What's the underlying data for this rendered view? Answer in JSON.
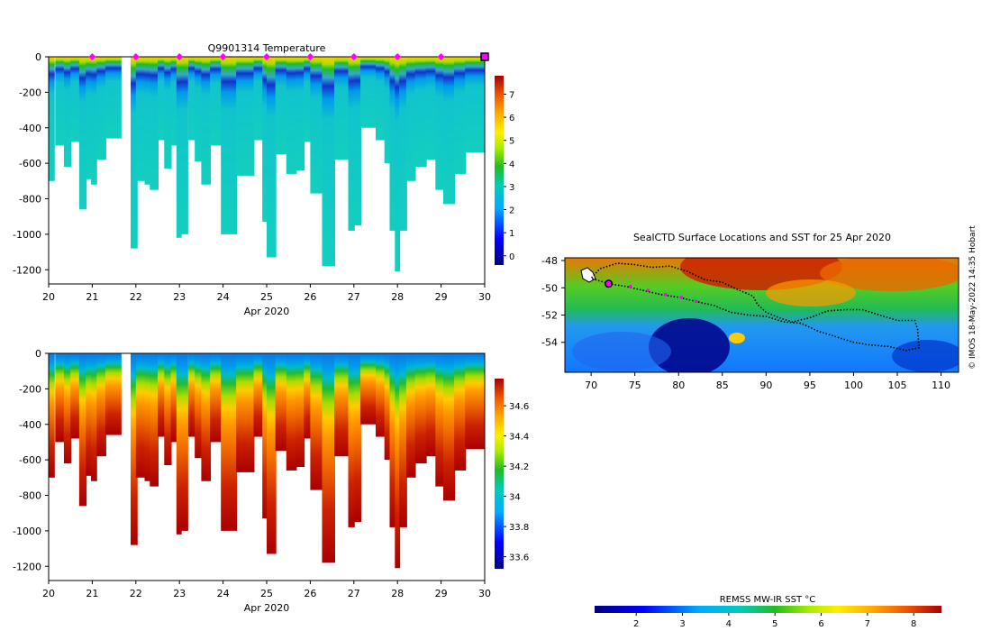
{
  "chart_data": [
    {
      "type": "heatmap",
      "title": "Q9901314  Temperature",
      "xlabel": "Apr 2020",
      "ylabel": "",
      "xlim": [
        20,
        30
      ],
      "ylim": [
        -1280,
        0
      ],
      "x_ticks": [
        "20",
        "21",
        "22",
        "23",
        "24",
        "25",
        "26",
        "27",
        "28",
        "29",
        "30"
      ],
      "y_ticks": [
        "0",
        "-200",
        "-400",
        "-600",
        "-800",
        "-1000",
        "-1200"
      ],
      "colorbar": {
        "ticks": [
          "0",
          "1",
          "2",
          "3",
          "4",
          "5",
          "6",
          "7"
        ],
        "range": [
          -0.4,
          7.8
        ]
      },
      "surface_markers": [
        21,
        22,
        23,
        24,
        25,
        26,
        27,
        28,
        29
      ],
      "current_marker": 30,
      "profiles": [
        {
          "day": 20.0,
          "width": 0.12,
          "depth": 700
        },
        {
          "day": 20.15,
          "width": 0.18,
          "depth": 500
        },
        {
          "day": 20.35,
          "width": 0.15,
          "depth": 620
        },
        {
          "day": 20.5,
          "width": 0.2,
          "depth": 480
        },
        {
          "day": 20.7,
          "width": 0.15,
          "depth": 860
        },
        {
          "day": 20.85,
          "width": 0.12,
          "depth": 690
        },
        {
          "day": 20.97,
          "width": 0.12,
          "depth": 720
        },
        {
          "day": 21.1,
          "width": 0.2,
          "depth": 580
        },
        {
          "day": 21.3,
          "width": 0.35,
          "depth": 460
        },
        {
          "day": 21.88,
          "width": 0.14,
          "depth": 1080
        },
        {
          "day": 22.0,
          "width": 0.2,
          "depth": 700
        },
        {
          "day": 22.2,
          "width": 0.12,
          "depth": 720
        },
        {
          "day": 22.32,
          "width": 0.18,
          "depth": 750
        },
        {
          "day": 22.5,
          "width": 0.15,
          "depth": 470
        },
        {
          "day": 22.65,
          "width": 0.15,
          "depth": 630
        },
        {
          "day": 22.8,
          "width": 0.15,
          "depth": 500
        },
        {
          "day": 22.93,
          "width": 0.1,
          "depth": 1020
        },
        {
          "day": 23.03,
          "width": 0.15,
          "depth": 1000
        },
        {
          "day": 23.2,
          "width": 0.15,
          "depth": 470
        },
        {
          "day": 23.35,
          "width": 0.15,
          "depth": 590
        },
        {
          "day": 23.5,
          "width": 0.2,
          "depth": 720
        },
        {
          "day": 23.7,
          "width": 0.25,
          "depth": 500
        },
        {
          "day": 23.95,
          "width": 0.35,
          "depth": 1000
        },
        {
          "day": 24.3,
          "width": 0.4,
          "depth": 670
        },
        {
          "day": 24.7,
          "width": 0.2,
          "depth": 470
        },
        {
          "day": 24.9,
          "width": 0.1,
          "depth": 930
        },
        {
          "day": 25.0,
          "width": 0.2,
          "depth": 1130
        },
        {
          "day": 25.2,
          "width": 0.25,
          "depth": 550
        },
        {
          "day": 25.45,
          "width": 0.22,
          "depth": 660
        },
        {
          "day": 25.67,
          "width": 0.18,
          "depth": 640
        },
        {
          "day": 25.85,
          "width": 0.15,
          "depth": 480
        },
        {
          "day": 26.0,
          "width": 0.25,
          "depth": 770
        },
        {
          "day": 26.27,
          "width": 0.28,
          "depth": 1180
        },
        {
          "day": 26.55,
          "width": 0.32,
          "depth": 580
        },
        {
          "day": 26.87,
          "width": 0.13,
          "depth": 980
        },
        {
          "day": 27.0,
          "width": 0.15,
          "depth": 950
        },
        {
          "day": 27.15,
          "width": 0.35,
          "depth": 400
        },
        {
          "day": 27.5,
          "width": 0.2,
          "depth": 470
        },
        {
          "day": 27.7,
          "width": 0.12,
          "depth": 600
        },
        {
          "day": 27.82,
          "width": 0.12,
          "depth": 980
        },
        {
          "day": 27.94,
          "width": 0.1,
          "depth": 1210
        },
        {
          "day": 28.04,
          "width": 0.16,
          "depth": 980
        },
        {
          "day": 28.2,
          "width": 0.2,
          "depth": 700
        },
        {
          "day": 28.4,
          "width": 0.25,
          "depth": 620
        },
        {
          "day": 28.65,
          "width": 0.22,
          "depth": 580
        },
        {
          "day": 28.87,
          "width": 0.18,
          "depth": 750
        },
        {
          "day": 29.05,
          "width": 0.25,
          "depth": 830
        },
        {
          "day": 29.3,
          "width": 0.25,
          "depth": 660
        },
        {
          "day": 29.55,
          "width": 0.45,
          "depth": 540
        }
      ]
    },
    {
      "type": "heatmap",
      "title": "",
      "xlabel": "Apr 2020",
      "ylabel": "",
      "xlim": [
        20,
        30
      ],
      "ylim": [
        -1280,
        0
      ],
      "x_ticks": [
        "20",
        "21",
        "22",
        "23",
        "24",
        "25",
        "26",
        "27",
        "28",
        "29",
        "30"
      ],
      "y_ticks": [
        "0",
        "-200",
        "-400",
        "-600",
        "-800",
        "-1000",
        "-1200"
      ],
      "colorbar": {
        "ticks": [
          "33.6",
          "33.8",
          "34",
          "34.2",
          "34.4",
          "34.6"
        ],
        "range": [
          33.52,
          34.78
        ]
      }
    },
    {
      "type": "heatmap",
      "title": "SealCTD Surface Locations and SST for 25 Apr 2020",
      "xlabel": "",
      "ylabel": "",
      "xlim": [
        67,
        112
      ],
      "ylim": [
        -56.2,
        -47.8
      ],
      "x_ticks": [
        "70",
        "75",
        "80",
        "85",
        "90",
        "95",
        "100",
        "105",
        "110"
      ],
      "y_ticks": [
        "-48",
        "-50",
        "-52",
        "-54"
      ],
      "colorbar": {
        "label": "REMSS MW-IR SST °C",
        "ticks": [
          "2",
          "3",
          "4",
          "5",
          "6",
          "7",
          "8"
        ],
        "range": [
          1.1,
          8.6
        ]
      },
      "current_position": {
        "lon": 72,
        "lat": -49.7
      },
      "recent_positions": [
        [
          74.5,
          -49.9
        ],
        [
          76.5,
          -50.2
        ],
        [
          78.5,
          -50.5
        ],
        [
          80.3,
          -50.7
        ],
        [
          82.0,
          -51.0
        ]
      ],
      "track": [
        [
          72,
          -49.7
        ],
        [
          74,
          -49.9
        ],
        [
          76,
          -50.2
        ],
        [
          78,
          -50.5
        ],
        [
          80,
          -50.7
        ],
        [
          82,
          -51.0
        ],
        [
          84,
          -51.3
        ],
        [
          86,
          -51.8
        ],
        [
          88,
          -52.0
        ],
        [
          90,
          -52.1
        ],
        [
          92,
          -52.5
        ],
        [
          94,
          -52.6
        ],
        [
          96,
          -53.2
        ],
        [
          98,
          -53.6
        ],
        [
          100,
          -54.0
        ],
        [
          102,
          -54.2
        ],
        [
          104,
          -54.3
        ],
        [
          106,
          -54.6
        ],
        [
          107.5,
          -54.4
        ],
        [
          107.3,
          -53.0
        ],
        [
          107,
          -52.4
        ],
        [
          105,
          -52.4
        ],
        [
          103,
          -52.0
        ],
        [
          101,
          -51.6
        ],
        [
          99,
          -51.6
        ],
        [
          97,
          -51.7
        ],
        [
          95,
          -52.2
        ],
        [
          93,
          -52.5
        ],
        [
          91.5,
          -52.2
        ],
        [
          90,
          -51.8
        ],
        [
          89,
          -51.2
        ],
        [
          88.5,
          -50.6
        ],
        [
          87,
          -50.2
        ],
        [
          85,
          -49.6
        ],
        [
          83,
          -49.4
        ],
        [
          81,
          -48.8
        ],
        [
          79,
          -48.4
        ],
        [
          77,
          -48.5
        ],
        [
          75,
          -48.3
        ],
        [
          73,
          -48.2
        ],
        [
          71,
          -48.6
        ],
        [
          70,
          -49.3
        ],
        [
          72,
          -49.7
        ]
      ]
    }
  ],
  "credit": "© IMOS 18-May-2022 14:35 Hobart",
  "colors": {
    "marker_magenta": "#ff00ff",
    "frame": "#000000"
  }
}
